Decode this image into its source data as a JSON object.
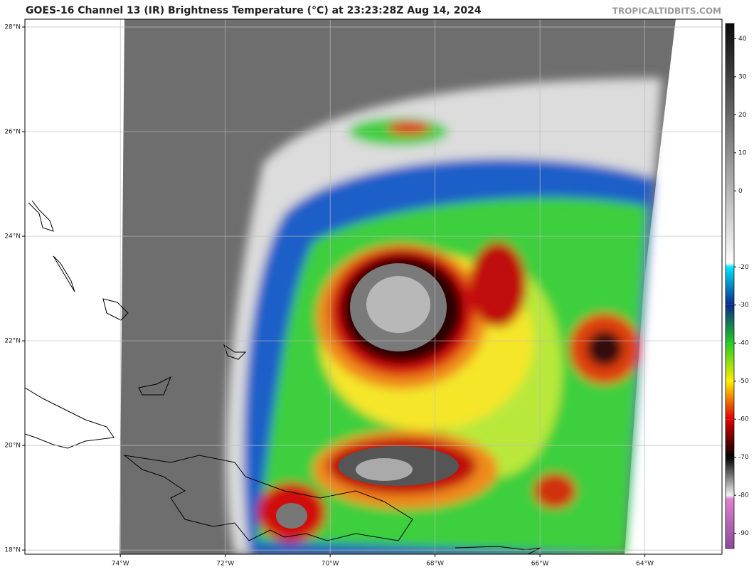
{
  "title": "GOES-16 Channel 13 (IR) Brightness Temperature (°C) at 23:23:28Z Aug 14, 2024",
  "source": "TROPICALTIDBITS.COM",
  "map": {
    "xlim": [
      -75.82,
      -62.53
    ],
    "ylim": [
      17.92,
      28.15
    ],
    "lat_ticks": [
      {
        "value": 18,
        "label": "18°N"
      },
      {
        "value": 20,
        "label": "20°N"
      },
      {
        "value": 22,
        "label": "22°N"
      },
      {
        "value": 24,
        "label": "24°N"
      },
      {
        "value": 26,
        "label": "26°N"
      },
      {
        "value": 28,
        "label": "28°N"
      }
    ],
    "lon_ticks": [
      {
        "value": -74,
        "label": "74°W"
      },
      {
        "value": -72,
        "label": "72°W"
      },
      {
        "value": -70,
        "label": "70°W"
      },
      {
        "value": -68,
        "label": "68°W"
      },
      {
        "value": -66,
        "label": "66°W"
      },
      {
        "value": -64,
        "label": "64°W"
      }
    ],
    "grid": true
  },
  "colorbar": {
    "lim": [
      -94,
      44
    ],
    "ticks": [
      40,
      30,
      20,
      10,
      0,
      -20,
      -30,
      -40,
      -50,
      -60,
      -70,
      -80,
      -90
    ],
    "stops": [
      {
        "value": 44,
        "color": "#0a0a0a"
      },
      {
        "value": -19,
        "color": "#ffffff"
      },
      {
        "value": -20,
        "color": "#00e5ff"
      },
      {
        "value": -30,
        "color": "#0a2a8a"
      },
      {
        "value": -40,
        "color": "#22cc22"
      },
      {
        "value": -50,
        "color": "#ffee00"
      },
      {
        "value": -60,
        "color": "#e00000"
      },
      {
        "value": -68,
        "color": "#300000"
      },
      {
        "value": -70,
        "color": "#000000"
      },
      {
        "value": -80,
        "color": "#f0f0f0"
      },
      {
        "value": -81,
        "color": "#e080d0"
      },
      {
        "value": -94,
        "color": "#8a4a9a"
      }
    ]
  }
}
